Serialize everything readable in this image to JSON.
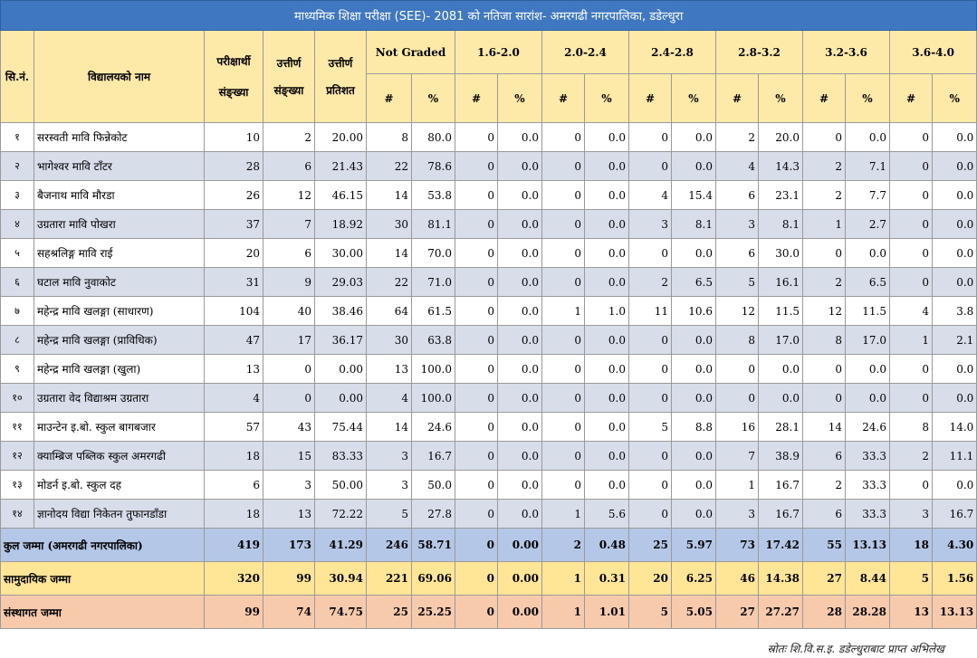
{
  "title": "माध्यमिक शिक्षा परीक्षा (SEE)- 2081 को  नतिजा सारांश- अमरगढी नगरपालिका, डडेल्धुरा",
  "headers": {
    "sn": "सि.नं.",
    "school": "विद्यालयको नाम",
    "examinees": "परीक्षार्थी संङ्ख्या",
    "passed": "उत्तीर्ण संङ्ख्या",
    "pass_pct": "उत्तीर्ण प्रतिशत",
    "groups": [
      "Not Graded",
      "1.6-2.0",
      "2.0-2.4",
      "2.4-2.8",
      "2.8-3.2",
      "3.2-3.6",
      "3.6-4.0"
    ],
    "count_sym": "#",
    "pct_sym": "%"
  },
  "rows": [
    {
      "sn": "१",
      "name": "सरस्वती मावि फिन्नेकोट",
      "vals": [
        "10",
        "2",
        "20.00",
        "8",
        "80.0",
        "0",
        "0.0",
        "0",
        "0.0",
        "0",
        "0.0",
        "2",
        "20.0",
        "0",
        "0.0",
        "0",
        "0.0"
      ]
    },
    {
      "sn": "२",
      "name": "भागेश्वर मावि टाँटर",
      "vals": [
        "28",
        "6",
        "21.43",
        "22",
        "78.6",
        "0",
        "0.0",
        "0",
        "0.0",
        "0",
        "0.0",
        "4",
        "14.3",
        "2",
        "7.1",
        "0",
        "0.0"
      ]
    },
    {
      "sn": "३",
      "name": "बैजनाथ मावि मौरडा",
      "vals": [
        "26",
        "12",
        "46.15",
        "14",
        "53.8",
        "0",
        "0.0",
        "0",
        "0.0",
        "4",
        "15.4",
        "6",
        "23.1",
        "2",
        "7.7",
        "0",
        "0.0"
      ]
    },
    {
      "sn": "४",
      "name": "उग्रतारा मावि पोखरा",
      "vals": [
        "37",
        "7",
        "18.92",
        "30",
        "81.1",
        "0",
        "0.0",
        "0",
        "0.0",
        "3",
        "8.1",
        "3",
        "8.1",
        "1",
        "2.7",
        "0",
        "0.0"
      ]
    },
    {
      "sn": "५",
      "name": "सहश्रलिङ्ग मावि राई",
      "vals": [
        "20",
        "6",
        "30.00",
        "14",
        "70.0",
        "0",
        "0.0",
        "0",
        "0.0",
        "0",
        "0.0",
        "6",
        "30.0",
        "0",
        "0.0",
        "0",
        "0.0"
      ]
    },
    {
      "sn": "६",
      "name": "घटाल मावि नुवाकोट",
      "vals": [
        "31",
        "9",
        "29.03",
        "22",
        "71.0",
        "0",
        "0.0",
        "0",
        "0.0",
        "2",
        "6.5",
        "5",
        "16.1",
        "2",
        "6.5",
        "0",
        "0.0"
      ]
    },
    {
      "sn": "७",
      "name": "महेन्द्र मावि खलङ्गा (साधारण)",
      "vals": [
        "104",
        "40",
        "38.46",
        "64",
        "61.5",
        "0",
        "0.0",
        "1",
        "1.0",
        "11",
        "10.6",
        "12",
        "11.5",
        "12",
        "11.5",
        "4",
        "3.8"
      ]
    },
    {
      "sn": "८",
      "name": "महेन्द्र मावि खलङ्गा (प्राविधिक)",
      "vals": [
        "47",
        "17",
        "36.17",
        "30",
        "63.8",
        "0",
        "0.0",
        "0",
        "0.0",
        "0",
        "0.0",
        "8",
        "17.0",
        "8",
        "17.0",
        "1",
        "2.1"
      ]
    },
    {
      "sn": "९",
      "name": "महेन्द्र मावि खलङ्गा (खुला)",
      "vals": [
        "13",
        "0",
        "0.00",
        "13",
        "100.0",
        "0",
        "0.0",
        "0",
        "0.0",
        "0",
        "0.0",
        "0",
        "0.0",
        "0",
        "0.0",
        "0",
        "0.0"
      ]
    },
    {
      "sn": "१०",
      "name": "उग्रतारा वेद विद्याश्रम उग्रतारा",
      "vals": [
        "4",
        "0",
        "0.00",
        "4",
        "100.0",
        "0",
        "0.0",
        "0",
        "0.0",
        "0",
        "0.0",
        "0",
        "0.0",
        "0",
        "0.0",
        "0",
        "0.0"
      ]
    },
    {
      "sn": "११",
      "name": "माउन्टेन इ.बो. स्कुल बागबजार",
      "vals": [
        "57",
        "43",
        "75.44",
        "14",
        "24.6",
        "0",
        "0.0",
        "0",
        "0.0",
        "5",
        "8.8",
        "16",
        "28.1",
        "14",
        "24.6",
        "8",
        "14.0"
      ]
    },
    {
      "sn": "१२",
      "name": "क्याम्ब्रिज पब्लिक स्कुल अमरगढी",
      "vals": [
        "18",
        "15",
        "83.33",
        "3",
        "16.7",
        "0",
        "0.0",
        "0",
        "0.0",
        "0",
        "0.0",
        "7",
        "38.9",
        "6",
        "33.3",
        "2",
        "11.1"
      ]
    },
    {
      "sn": "१३",
      "name": "मोडर्न इ.बो. स्कुल दह",
      "vals": [
        "6",
        "3",
        "50.00",
        "3",
        "50.0",
        "0",
        "0.0",
        "0",
        "0.0",
        "0",
        "0.0",
        "1",
        "16.7",
        "2",
        "33.3",
        "0",
        "0.0"
      ]
    },
    {
      "sn": "१४",
      "name": "ज्ञानोदय विद्या निकेतन तुफानडाँडा",
      "vals": [
        "18",
        "13",
        "72.22",
        "5",
        "27.8",
        "0",
        "0.0",
        "1",
        "5.6",
        "0",
        "0.0",
        "3",
        "16.7",
        "6",
        "33.3",
        "3",
        "16.7"
      ]
    }
  ],
  "totals": [
    {
      "label": "कुल जम्मा (अमरगढी नगरपालिका)",
      "vals": [
        "419",
        "173",
        "41.29",
        "246",
        "58.71",
        "0",
        "0.00",
        "2",
        "0.48",
        "25",
        "5.97",
        "73",
        "17.42",
        "55",
        "13.13",
        "18",
        "4.30"
      ]
    },
    {
      "label": "सामुदायिक जम्मा",
      "vals": [
        "320",
        "99",
        "30.94",
        "221",
        "69.06",
        "0",
        "0.00",
        "1",
        "0.31",
        "20",
        "6.25",
        "46",
        "14.38",
        "27",
        "8.44",
        "5",
        "1.56"
      ]
    },
    {
      "label": "संस्थागत जम्मा",
      "vals": [
        "99",
        "74",
        "74.75",
        "25",
        "25.25",
        "0",
        "0.00",
        "1",
        "1.01",
        "5",
        "5.05",
        "27",
        "27.27",
        "28",
        "28.28",
        "13",
        "13.13"
      ]
    }
  ],
  "source": "स्रोतः शि.वि.स.इ. डडेल्धुराबाट प्राप्त अभिलेख"
}
